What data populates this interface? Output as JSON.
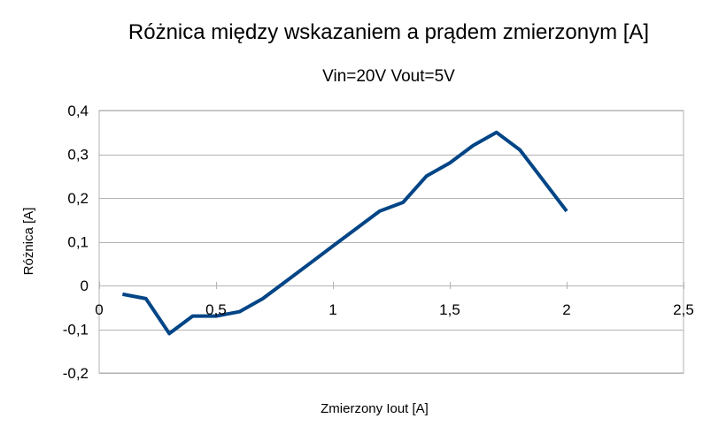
{
  "chart_data": {
    "type": "line",
    "title": "Różnica między wskazaniem a prądem zmierzonym [A]",
    "subtitle": "Vin=20V Vout=5V",
    "xlabel": "Zmierzony Iout [A]",
    "ylabel": "Różnica [A]",
    "xlim": [
      0,
      2.5
    ],
    "ylim": [
      -0.2,
      0.4
    ],
    "x_ticks": [
      0,
      0.5,
      1,
      1.5,
      2,
      2.5
    ],
    "x_tick_labels": [
      "0",
      "0,5",
      "1",
      "1,5",
      "2",
      "2,5"
    ],
    "y_ticks": [
      0.4,
      0.3,
      0.2,
      0.1,
      0,
      -0.1,
      -0.2
    ],
    "y_tick_labels": [
      "0,4",
      "0,3",
      "0,2",
      "0,1",
      "0",
      "-0,1",
      "-0,2"
    ],
    "grid": true,
    "legend": false,
    "series": [
      {
        "color": "#004586",
        "x": [
          0.1,
          0.2,
          0.3,
          0.4,
          0.5,
          0.6,
          0.7,
          0.8,
          0.9,
          1.0,
          1.1,
          1.2,
          1.3,
          1.4,
          1.5,
          1.6,
          1.7,
          1.8,
          1.9,
          2.0
        ],
        "y": [
          -0.02,
          -0.03,
          -0.11,
          -0.07,
          -0.07,
          -0.06,
          -0.03,
          0.01,
          0.05,
          0.09,
          0.13,
          0.17,
          0.19,
          0.25,
          0.28,
          0.32,
          0.35,
          0.31,
          0.24,
          0.17
        ]
      }
    ]
  }
}
